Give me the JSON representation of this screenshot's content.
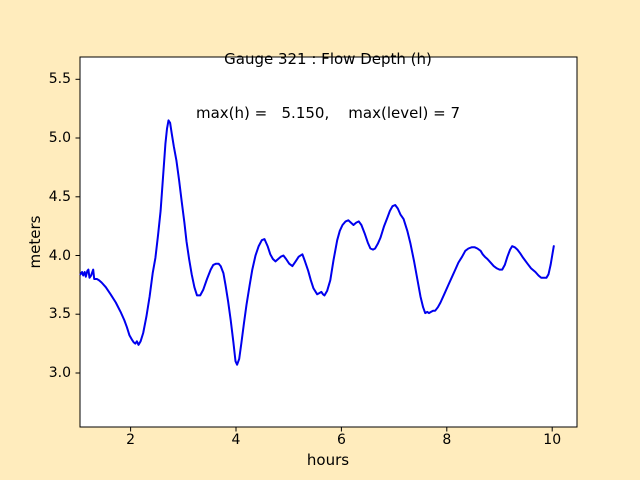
{
  "chart_data": {
    "type": "line",
    "title": "Gauge 321 : Flow Depth (h)",
    "subtitle": "max(h) =   5.150,    max(level) = 7",
    "xlabel": "hours",
    "ylabel": "meters",
    "xlim": [
      1.04,
      10.47
    ],
    "ylim": [
      2.54,
      5.69
    ],
    "xticks": [
      2,
      4,
      6,
      8,
      10
    ],
    "yticks": [
      3.0,
      3.5,
      4.0,
      4.5,
      5.0,
      5.5
    ],
    "xtick_labels": [
      "2",
      "4",
      "6",
      "8",
      "10"
    ],
    "ytick_labels": [
      "3.0",
      "3.5",
      "4.0",
      "4.5",
      "5.0",
      "5.5"
    ],
    "grid": "off",
    "legend": "none",
    "background": "#ffecbd",
    "axes_background": "#ffffff",
    "line_color": "#0000ee",
    "max_h": 5.15,
    "max_level": 7,
    "series_name": "flow depth h (meters)",
    "points": [
      [
        1.05,
        3.84
      ],
      [
        1.08,
        3.86
      ],
      [
        1.1,
        3.83
      ],
      [
        1.13,
        3.86
      ],
      [
        1.15,
        3.82
      ],
      [
        1.18,
        3.87
      ],
      [
        1.2,
        3.88
      ],
      [
        1.22,
        3.81
      ],
      [
        1.25,
        3.83
      ],
      [
        1.29,
        3.88
      ],
      [
        1.31,
        3.8
      ],
      [
        1.36,
        3.8
      ],
      [
        1.4,
        3.79
      ],
      [
        1.45,
        3.77
      ],
      [
        1.53,
        3.73
      ],
      [
        1.62,
        3.67
      ],
      [
        1.72,
        3.6
      ],
      [
        1.81,
        3.52
      ],
      [
        1.88,
        3.45
      ],
      [
        1.93,
        3.39
      ],
      [
        1.98,
        3.32
      ],
      [
        2.03,
        3.28
      ],
      [
        2.06,
        3.26
      ],
      [
        2.09,
        3.25
      ],
      [
        2.12,
        3.27
      ],
      [
        2.15,
        3.24
      ],
      [
        2.19,
        3.27
      ],
      [
        2.24,
        3.34
      ],
      [
        2.3,
        3.48
      ],
      [
        2.36,
        3.65
      ],
      [
        2.42,
        3.85
      ],
      [
        2.47,
        3.98
      ],
      [
        2.52,
        4.17
      ],
      [
        2.57,
        4.38
      ],
      [
        2.62,
        4.7
      ],
      [
        2.66,
        4.95
      ],
      [
        2.69,
        5.08
      ],
      [
        2.72,
        5.15
      ],
      [
        2.75,
        5.13
      ],
      [
        2.78,
        5.04
      ],
      [
        2.82,
        4.93
      ],
      [
        2.87,
        4.81
      ],
      [
        2.92,
        4.64
      ],
      [
        2.97,
        4.46
      ],
      [
        3.02,
        4.28
      ],
      [
        3.06,
        4.12
      ],
      [
        3.11,
        3.97
      ],
      [
        3.16,
        3.84
      ],
      [
        3.21,
        3.73
      ],
      [
        3.26,
        3.66
      ],
      [
        3.32,
        3.66
      ],
      [
        3.38,
        3.71
      ],
      [
        3.45,
        3.8
      ],
      [
        3.52,
        3.88
      ],
      [
        3.57,
        3.92
      ],
      [
        3.62,
        3.93
      ],
      [
        3.67,
        3.93
      ],
      [
        3.71,
        3.91
      ],
      [
        3.76,
        3.85
      ],
      [
        3.8,
        3.75
      ],
      [
        3.85,
        3.61
      ],
      [
        3.9,
        3.45
      ],
      [
        3.95,
        3.26
      ],
      [
        3.99,
        3.1
      ],
      [
        4.02,
        3.07
      ],
      [
        4.06,
        3.12
      ],
      [
        4.1,
        3.25
      ],
      [
        4.15,
        3.42
      ],
      [
        4.2,
        3.58
      ],
      [
        4.26,
        3.75
      ],
      [
        4.31,
        3.88
      ],
      [
        4.37,
        4.0
      ],
      [
        4.43,
        4.08
      ],
      [
        4.49,
        4.13
      ],
      [
        4.54,
        4.14
      ],
      [
        4.6,
        4.08
      ],
      [
        4.65,
        4.01
      ],
      [
        4.7,
        3.97
      ],
      [
        4.75,
        3.95
      ],
      [
        4.8,
        3.97
      ],
      [
        4.85,
        3.99
      ],
      [
        4.9,
        4.0
      ],
      [
        4.95,
        3.97
      ],
      [
        5.01,
        3.93
      ],
      [
        5.07,
        3.91
      ],
      [
        5.13,
        3.95
      ],
      [
        5.19,
        3.99
      ],
      [
        5.26,
        4.01
      ],
      [
        5.31,
        3.95
      ],
      [
        5.37,
        3.87
      ],
      [
        5.42,
        3.79
      ],
      [
        5.47,
        3.72
      ],
      [
        5.54,
        3.67
      ],
      [
        5.58,
        3.68
      ],
      [
        5.62,
        3.69
      ],
      [
        5.65,
        3.67
      ],
      [
        5.68,
        3.66
      ],
      [
        5.73,
        3.7
      ],
      [
        5.79,
        3.79
      ],
      [
        5.85,
        3.96
      ],
      [
        5.92,
        4.13
      ],
      [
        5.97,
        4.21
      ],
      [
        6.02,
        4.26
      ],
      [
        6.08,
        4.29
      ],
      [
        6.13,
        4.3
      ],
      [
        6.18,
        4.28
      ],
      [
        6.23,
        4.26
      ],
      [
        6.28,
        4.28
      ],
      [
        6.33,
        4.29
      ],
      [
        6.38,
        4.26
      ],
      [
        6.44,
        4.19
      ],
      [
        6.5,
        4.11
      ],
      [
        6.55,
        4.06
      ],
      [
        6.6,
        4.05
      ],
      [
        6.64,
        4.06
      ],
      [
        6.69,
        4.1
      ],
      [
        6.74,
        4.15
      ],
      [
        6.81,
        4.25
      ],
      [
        6.87,
        4.32
      ],
      [
        6.92,
        4.38
      ],
      [
        6.97,
        4.42
      ],
      [
        7.02,
        4.43
      ],
      [
        7.07,
        4.4
      ],
      [
        7.12,
        4.35
      ],
      [
        7.18,
        4.31
      ],
      [
        7.25,
        4.21
      ],
      [
        7.31,
        4.1
      ],
      [
        7.38,
        3.95
      ],
      [
        7.44,
        3.8
      ],
      [
        7.5,
        3.65
      ],
      [
        7.55,
        3.56
      ],
      [
        7.59,
        3.51
      ],
      [
        7.63,
        3.52
      ],
      [
        7.66,
        3.51
      ],
      [
        7.7,
        3.52
      ],
      [
        7.74,
        3.53
      ],
      [
        7.78,
        3.53
      ],
      [
        7.83,
        3.56
      ],
      [
        7.88,
        3.6
      ],
      [
        7.95,
        3.67
      ],
      [
        8.03,
        3.75
      ],
      [
        8.1,
        3.82
      ],
      [
        8.16,
        3.88
      ],
      [
        8.22,
        3.94
      ],
      [
        8.29,
        3.99
      ],
      [
        8.35,
        4.04
      ],
      [
        8.41,
        4.06
      ],
      [
        8.47,
        4.07
      ],
      [
        8.53,
        4.07
      ],
      [
        8.58,
        4.06
      ],
      [
        8.64,
        4.04
      ],
      [
        8.68,
        4.01
      ],
      [
        8.72,
        3.99
      ],
      [
        8.77,
        3.97
      ],
      [
        8.83,
        3.94
      ],
      [
        8.89,
        3.91
      ],
      [
        8.95,
        3.89
      ],
      [
        9.0,
        3.88
      ],
      [
        9.05,
        3.88
      ],
      [
        9.1,
        3.92
      ],
      [
        9.15,
        3.99
      ],
      [
        9.2,
        4.05
      ],
      [
        9.24,
        4.08
      ],
      [
        9.29,
        4.07
      ],
      [
        9.34,
        4.05
      ],
      [
        9.39,
        4.02
      ],
      [
        9.45,
        3.98
      ],
      [
        9.53,
        3.93
      ],
      [
        9.6,
        3.89
      ],
      [
        9.68,
        3.86
      ],
      [
        9.74,
        3.83
      ],
      [
        9.79,
        3.81
      ],
      [
        9.84,
        3.81
      ],
      [
        9.89,
        3.81
      ],
      [
        9.93,
        3.84
      ],
      [
        9.97,
        3.92
      ],
      [
        10.0,
        4.0
      ],
      [
        10.03,
        4.08
      ]
    ]
  }
}
